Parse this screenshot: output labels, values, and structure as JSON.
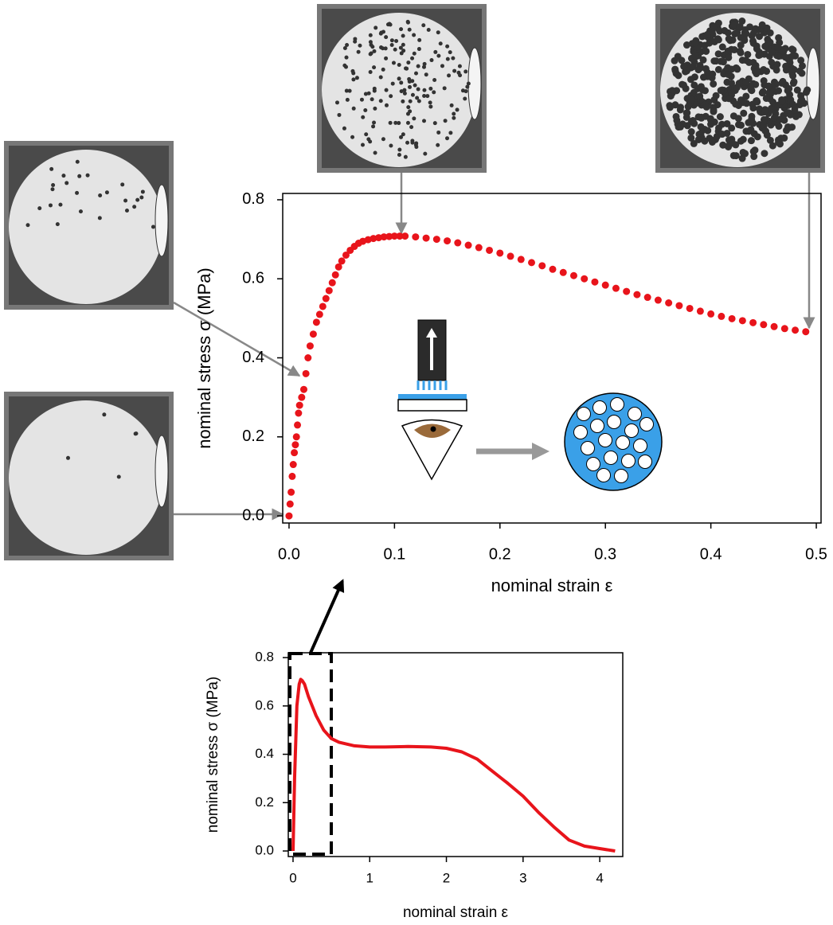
{
  "chart_data": [
    {
      "type": "scatter",
      "xlabel": "nominal strain ε",
      "ylabel": "nominal stress σ (MPa)",
      "color": "#e8141b",
      "xlim": [
        -0.006,
        0.5045
      ],
      "ylim": [
        -0.018,
        0.816
      ],
      "xticks": [
        {
          "value": 0,
          "label": "0.0"
        },
        0.1,
        0.2,
        0.3,
        0.4,
        0.5
      ],
      "yticks": [
        {
          "value": 0,
          "label": "0.0"
        },
        0.2,
        0.4,
        0.6,
        0.8
      ],
      "x": [
        0,
        0.001,
        0.002,
        0.003,
        0.004,
        0.005,
        0.006,
        0.007,
        0.008,
        0.009,
        0.01,
        0.012,
        0.014,
        0.016,
        0.018,
        0.02,
        0.023,
        0.026,
        0.029,
        0.032,
        0.035,
        0.038,
        0.041,
        0.044,
        0.047,
        0.05,
        0.054,
        0.058,
        0.062,
        0.066,
        0.07,
        0.075,
        0.08,
        0.085,
        0.09,
        0.095,
        0.1,
        0.105,
        0.11,
        0.12,
        0.13,
        0.14,
        0.15,
        0.16,
        0.17,
        0.18,
        0.19,
        0.2,
        0.21,
        0.22,
        0.23,
        0.24,
        0.25,
        0.26,
        0.27,
        0.28,
        0.29,
        0.3,
        0.31,
        0.32,
        0.33,
        0.34,
        0.35,
        0.36,
        0.37,
        0.38,
        0.39,
        0.4,
        0.41,
        0.42,
        0.43,
        0.44,
        0.45,
        0.46,
        0.47,
        0.48,
        0.49
      ],
      "values": [
        0,
        0.03,
        0.06,
        0.1,
        0.13,
        0.16,
        0.18,
        0.2,
        0.23,
        0.26,
        0.28,
        0.3,
        0.32,
        0.36,
        0.4,
        0.43,
        0.46,
        0.49,
        0.51,
        0.53,
        0.55,
        0.57,
        0.59,
        0.61,
        0.63,
        0.645,
        0.66,
        0.672,
        0.682,
        0.69,
        0.695,
        0.699,
        0.702,
        0.704,
        0.706,
        0.707,
        0.708,
        0.708,
        0.708,
        0.706,
        0.703,
        0.7,
        0.696,
        0.691,
        0.685,
        0.679,
        0.672,
        0.665,
        0.657,
        0.649,
        0.641,
        0.633,
        0.624,
        0.616,
        0.608,
        0.6,
        0.592,
        0.584,
        0.576,
        0.568,
        0.56,
        0.553,
        0.546,
        0.539,
        0.532,
        0.525,
        0.518,
        0.511,
        0.505,
        0.499,
        0.494,
        0.489,
        0.484,
        0.479,
        0.474,
        0.47,
        0.466
      ]
    },
    {
      "type": "line",
      "xlabel": "nominal strain ε",
      "ylabel": "nominal stress σ (MPa)",
      "color": "#e8141b",
      "xlim": [
        -0.062,
        4.3
      ],
      "ylim": [
        -0.023,
        0.82
      ],
      "xticks": [
        0,
        1,
        2,
        3,
        4
      ],
      "yticks": [
        {
          "value": 0,
          "label": "0.0"
        },
        0.2,
        0.4,
        0.6,
        0.8
      ],
      "x": [
        0,
        0.02,
        0.05,
        0.08,
        0.1,
        0.12,
        0.15,
        0.2,
        0.3,
        0.4,
        0.5,
        0.6,
        0.8,
        1,
        1.2,
        1.5,
        1.8,
        2,
        2.2,
        2.4,
        2.6,
        2.8,
        3,
        3.2,
        3.4,
        3.6,
        3.8,
        4,
        4.2
      ],
      "values": [
        0,
        0.3,
        0.6,
        0.69,
        0.71,
        0.705,
        0.69,
        0.64,
        0.56,
        0.5,
        0.465,
        0.45,
        0.435,
        0.43,
        0.43,
        0.432,
        0.43,
        0.425,
        0.41,
        0.38,
        0.33,
        0.28,
        0.227,
        0.16,
        0.1,
        0.045,
        0.02,
        0.01,
        0.0
      ]
    }
  ]
}
